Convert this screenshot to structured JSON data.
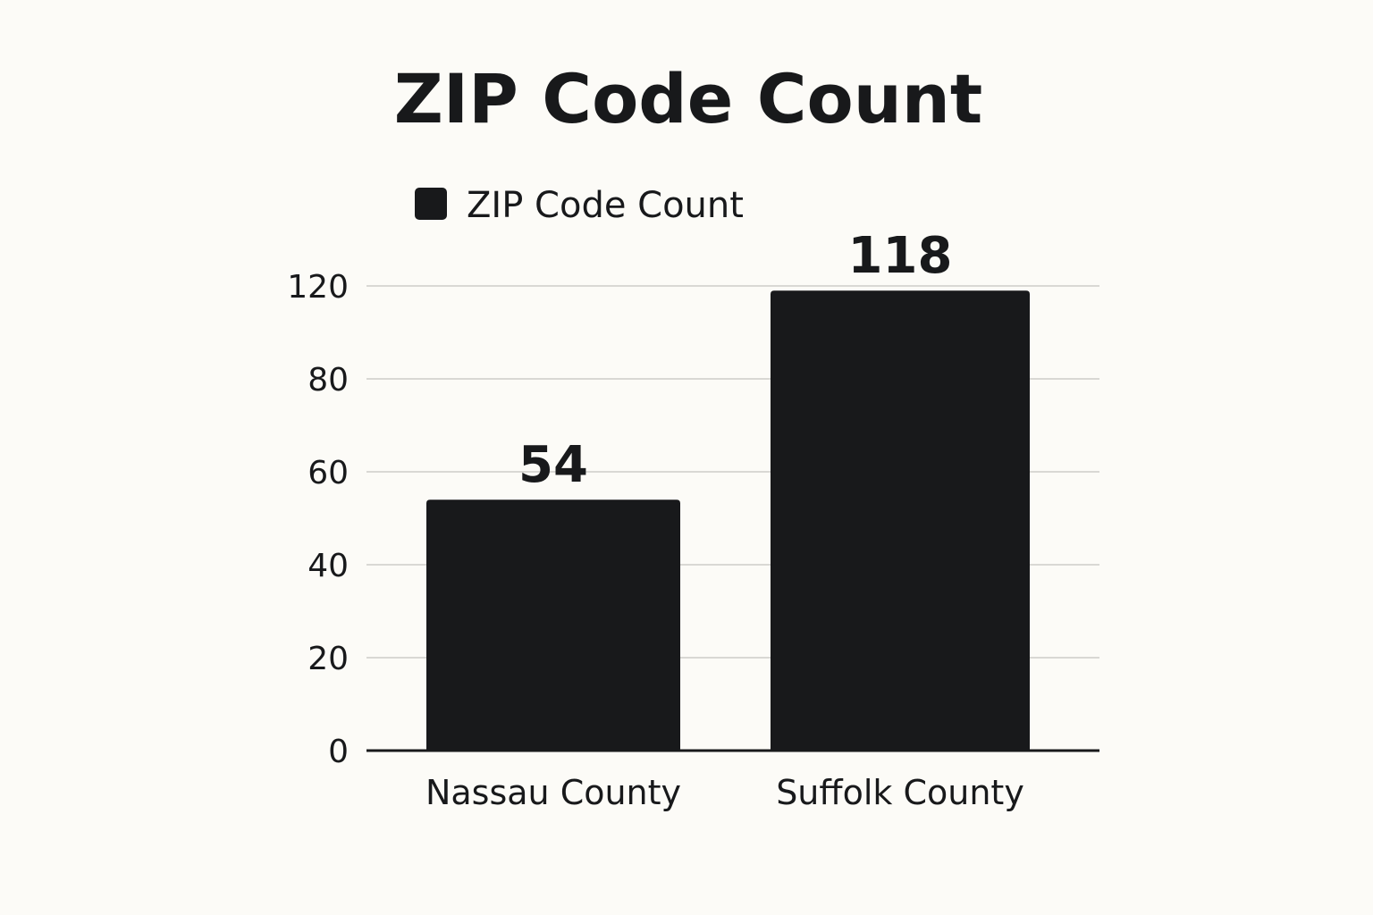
{
  "chart_data": {
    "type": "bar",
    "title": "ZIP Code Count",
    "xlabel": "",
    "ylabel": "",
    "categories": [
      "Nassau County",
      "Suffolk County"
    ],
    "series": [
      {
        "name": "ZIP Code Count",
        "values": [
          54,
          118
        ],
        "color": "#18191b"
      }
    ],
    "data_labels": [
      "54",
      "118"
    ],
    "y_ticks": [
      0,
      20,
      40,
      60,
      80,
      120
    ],
    "grid": true,
    "legend": "top-left"
  },
  "colors": {
    "background": "#fcfbf7",
    "bar": "#18191b",
    "grid": "#d9d8d4",
    "axis": "#18191b",
    "text": "#18191b"
  }
}
